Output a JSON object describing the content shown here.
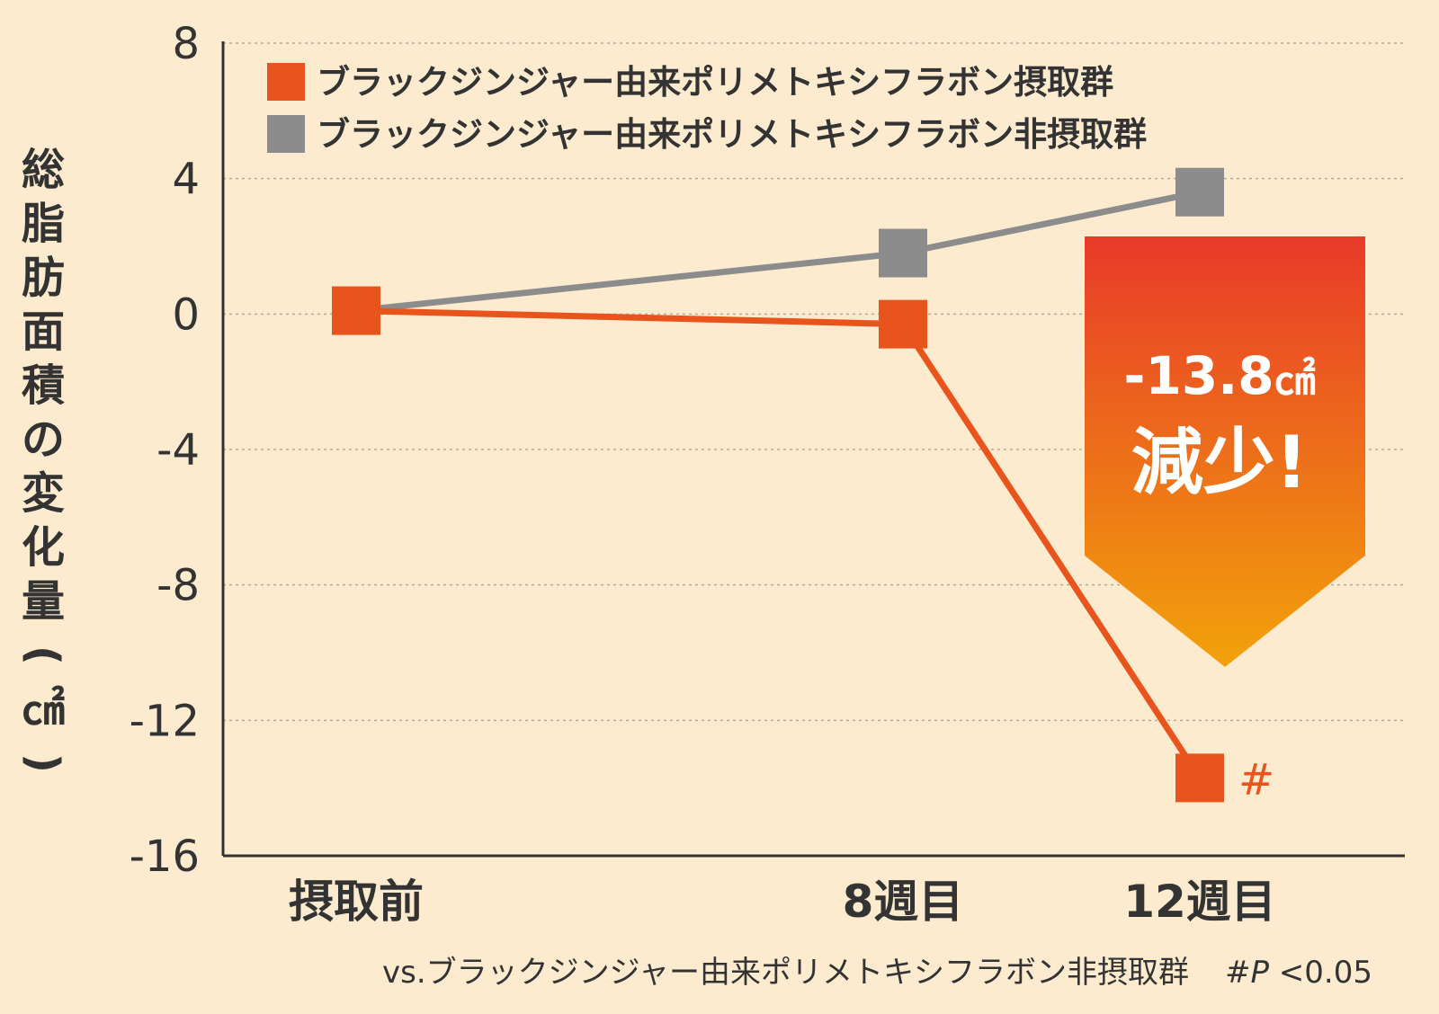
{
  "colors": {
    "background": "#fdebd0",
    "intake": "#e8541c",
    "non_intake": "#8c8c8c",
    "axis": "#333333",
    "grid": "#b9a996",
    "callout_top": "#e83a2a",
    "callout_bottom": "#f2a20a",
    "text": "#333333",
    "callout_text": "#ffffff"
  },
  "callout": {
    "value": "-13.8",
    "unit": "㎠",
    "word": "減少!"
  },
  "footnote": {
    "vs_text": "vs.ブラックジンジャー由来ポリメトキシフラボン非摂取群",
    "mark": "#",
    "p_italic": "P",
    "threshold": " <0.05"
  },
  "chart_data": {
    "type": "line",
    "ylabel": "総脂肪面積の変化量(㎠)",
    "categories": [
      "摂取前",
      "8週目",
      "12週目"
    ],
    "x_positions": [
      0,
      8,
      12
    ],
    "ylim": [
      -16,
      8
    ],
    "yticks": [
      "8",
      "4",
      "0",
      "-4",
      "-8",
      "-12",
      "-16"
    ],
    "grid": true,
    "legend_position": "top-left",
    "series": [
      {
        "name": "ブラックジンジャー由来ポリメトキシフラボン摂取群",
        "values": [
          0.1,
          -0.3,
          -13.7
        ],
        "marks": [
          "",
          "",
          "#"
        ]
      },
      {
        "name": "ブラックジンジャー由来ポリメトキシフラボン非摂取群",
        "values": [
          0.1,
          1.8,
          3.6
        ],
        "marks": [
          "",
          "",
          ""
        ]
      }
    ]
  }
}
